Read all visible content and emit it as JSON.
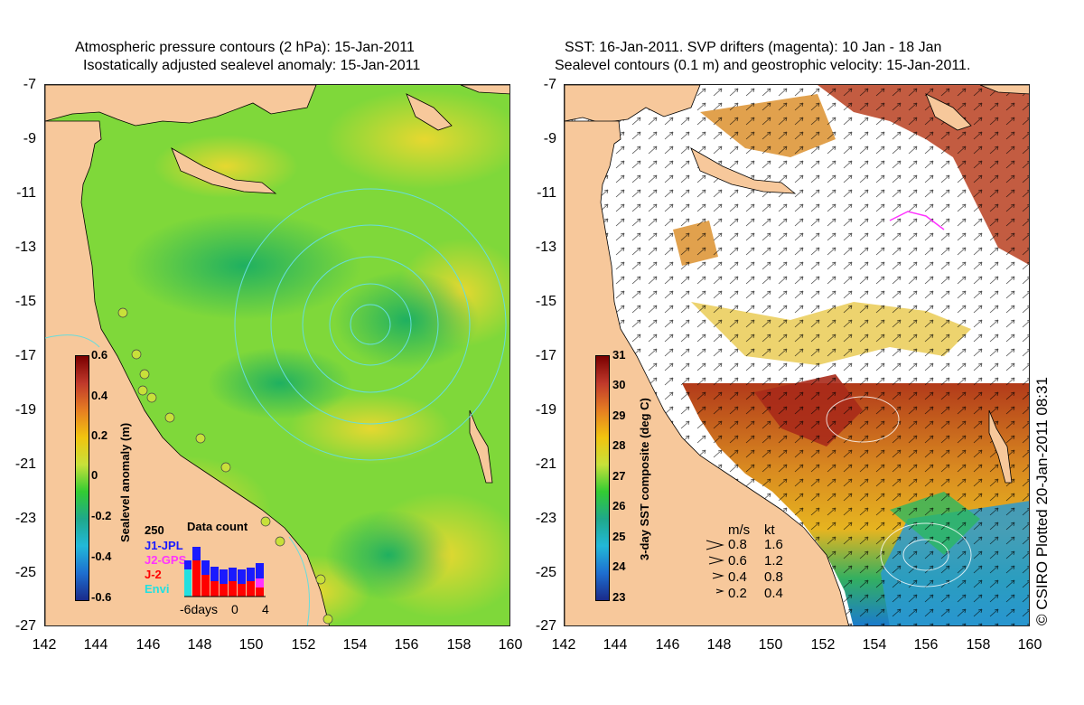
{
  "left_panel": {
    "title_line1": "Atmospheric pressure contours (2 hPa): 15-Jan-2011",
    "title_line2": "Isostatically adjusted sealevel anomaly: 15-Jan-2011",
    "colorbar_title": "Sealevel anomaly (m)",
    "colorbar_ticks": [
      "0.6",
      "0.4",
      "0.2",
      "0",
      "-0.2",
      "-0.4",
      "-0.6"
    ],
    "colorbar_colors": [
      "#7a0000",
      "#c0392b",
      "#e67e22",
      "#f1c40f",
      "#c8e03a",
      "#33cc33",
      "#1fa88a",
      "#22b8d8",
      "#1e6fd0",
      "#1a2a8a"
    ],
    "data_count": {
      "max_label": "250",
      "title": "Data count",
      "missions": [
        {
          "name": "J1-JPL",
          "color": "#1a1aff"
        },
        {
          "name": "J2-GPS",
          "color": "#ff33ff"
        },
        {
          "name": "J-2",
          "color": "#ff0000"
        },
        {
          "name": "Envi",
          "color": "#22e0e0"
        }
      ],
      "x_labels": [
        "-6days",
        "0",
        "4"
      ]
    }
  },
  "right_panel": {
    "title_line1": "SST: 16-Jan-2011. SVP drifters (magenta): 10 Jan - 18 Jan",
    "title_line2": "Sealevel contours (0.1 m) and geostrophic velocity: 15-Jan-2011.",
    "colorbar_title": "3-day SST composite (deg C)",
    "colorbar_ticks": [
      "31",
      "30",
      "29",
      "28",
      "27",
      "26",
      "25",
      "24",
      "23"
    ],
    "colorbar_colors": [
      "#7a0000",
      "#c0392b",
      "#e67e22",
      "#f1c40f",
      "#c8e03a",
      "#33cc33",
      "#1fa88a",
      "#22b8d8",
      "#1e6fd0",
      "#1a2a8a"
    ],
    "velocity_legend": {
      "header_ms": "m/s",
      "header_kt": "kt",
      "rows": [
        {
          "ms": "0.8",
          "kt": "1.6"
        },
        {
          "ms": "0.6",
          "kt": "1.2"
        },
        {
          "ms": "0.4",
          "kt": "0.8"
        },
        {
          "ms": "0.2",
          "kt": "0.4"
        }
      ]
    },
    "credit": "© CSIRO Plotted 20-Jan-2011 08:31"
  },
  "axes": {
    "y_ticks": [
      "-7",
      "-9",
      "-11",
      "-13",
      "-15",
      "-17",
      "-19",
      "-21",
      "-23",
      "-25",
      "-27"
    ],
    "x_ticks": [
      "142",
      "144",
      "146",
      "148",
      "150",
      "152",
      "154",
      "156",
      "158",
      "160"
    ]
  },
  "colors": {
    "land": "#f7c89b",
    "ocean_green": "#33cc33",
    "ocean_yellow": "#d8e43a",
    "cloud_white": "#ffffff",
    "sst_warm": "#d98a20",
    "sst_hot": "#a8321a",
    "contour_cyan": "#66dddd"
  }
}
